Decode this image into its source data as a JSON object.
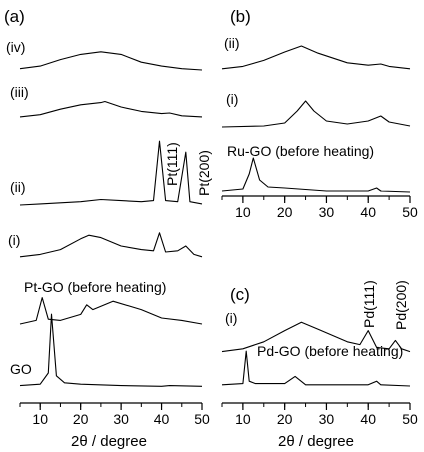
{
  "chart_data": [
    {
      "panel": "(a)",
      "type": "line",
      "xlabel": "2θ / degree",
      "xlim": [
        5,
        50
      ],
      "xticks": [
        10,
        20,
        30,
        40,
        50
      ],
      "ticks_label": [
        "10",
        "20",
        "30",
        "40",
        "50"
      ],
      "series": [
        {
          "name": "(iv)",
          "x": [
            5,
            10,
            15,
            20,
            25,
            30,
            35,
            40,
            45,
            50
          ],
          "values": [
            0.1,
            0.3,
            0.8,
            1.2,
            1.4,
            1.2,
            0.6,
            0.3,
            0.1,
            0.0
          ]
        },
        {
          "name": "(iii)",
          "x": [
            5,
            10,
            15,
            20,
            25,
            26,
            30,
            35,
            40,
            42,
            45,
            50
          ],
          "values": [
            0.1,
            0.3,
            0.8,
            1.2,
            1.4,
            1.5,
            1.0,
            0.6,
            0.4,
            0.45,
            0.2,
            0.1
          ]
        },
        {
          "name": "(ii)",
          "x": [
            5,
            10,
            15,
            20,
            25,
            30,
            35,
            38,
            39.5,
            41,
            44,
            46,
            47,
            50
          ],
          "values": [
            0.0,
            0.1,
            0.2,
            0.3,
            0.5,
            0.4,
            0.3,
            0.4,
            5.8,
            0.4,
            0.3,
            4.8,
            0.3,
            0.1
          ]
        },
        {
          "name": "(i)",
          "x": [
            5,
            10,
            15,
            20,
            22,
            25,
            30,
            35,
            38,
            39.5,
            41,
            44,
            46,
            48,
            50
          ],
          "values": [
            0.1,
            0.3,
            0.7,
            1.6,
            1.9,
            1.7,
            1.0,
            0.7,
            0.6,
            2.1,
            0.5,
            0.6,
            1.0,
            0.3,
            0.1
          ]
        },
        {
          "name": "Pt-GO (before heating)",
          "x": [
            5,
            9,
            10.5,
            12,
            15,
            20,
            21.5,
            23,
            28,
            35,
            40,
            45,
            50
          ],
          "values": [
            0.0,
            0.3,
            2.2,
            0.4,
            0.3,
            0.8,
            1.6,
            1.2,
            1.9,
            1.2,
            0.5,
            0.3,
            0.0
          ]
        },
        {
          "name": "GO",
          "x": [
            5,
            10,
            12,
            12.8,
            14,
            16,
            20,
            30,
            40,
            42,
            50
          ],
          "values": [
            0.1,
            0.2,
            1.0,
            5.2,
            0.8,
            0.3,
            0.2,
            0.1,
            0.05,
            0.1,
            0.05
          ]
        }
      ],
      "annotations": [
        "Pt(111)",
        "Pt(200)"
      ]
    },
    {
      "panel": "(b)",
      "type": "line",
      "xlabel": "",
      "xlim": [
        5,
        50
      ],
      "xticks": [
        10,
        20,
        30,
        40,
        50
      ],
      "ticks_label": [
        "10",
        "20",
        "30",
        "40",
        "50"
      ],
      "series": [
        {
          "name": "(ii)",
          "x": [
            5,
            10,
            15,
            20,
            24,
            28,
            35,
            40,
            43,
            45,
            50
          ],
          "values": [
            0.1,
            0.3,
            0.8,
            1.5,
            2.0,
            1.4,
            0.6,
            0.4,
            0.5,
            0.3,
            0.1
          ]
        },
        {
          "name": "(i)",
          "x": [
            5,
            15,
            20,
            23,
            25,
            27,
            30,
            35,
            40,
            43,
            45,
            50
          ],
          "values": [
            0.0,
            0.1,
            0.4,
            1.6,
            2.6,
            1.6,
            0.6,
            0.3,
            0.6,
            1.1,
            0.5,
            0.1
          ]
        },
        {
          "name": "Ru-GO (before heating)",
          "x": [
            5,
            10,
            11.5,
            12.5,
            14,
            16,
            20,
            30,
            40,
            42,
            43,
            50
          ],
          "values": [
            0.1,
            0.3,
            1.8,
            3.4,
            1.2,
            0.5,
            0.4,
            0.1,
            0.1,
            0.4,
            0.1,
            0.0
          ]
        }
      ]
    },
    {
      "panel": "(c)",
      "type": "line",
      "xlabel": "2θ / degree",
      "xlim": [
        5,
        50
      ],
      "xticks": [
        10,
        20,
        30,
        40,
        50
      ],
      "ticks_label": [
        "10",
        "20",
        "30",
        "40",
        "50"
      ],
      "series": [
        {
          "name": "(i)",
          "x": [
            5,
            10,
            15,
            20,
            24,
            28,
            35,
            38,
            40,
            42,
            45,
            46.5,
            48,
            50
          ],
          "values": [
            0.1,
            0.3,
            0.8,
            1.6,
            2.2,
            1.7,
            0.8,
            0.6,
            1.6,
            0.4,
            0.3,
            0.9,
            0.3,
            0.1
          ]
        },
        {
          "name": "Pd-GO (before heating)",
          "x": [
            5,
            10,
            10.8,
            11.5,
            13,
            20,
            22.5,
            25,
            30,
            40,
            42,
            43,
            50
          ],
          "values": [
            0.1,
            0.2,
            2.9,
            0.4,
            0.2,
            0.2,
            0.8,
            0.1,
            0.1,
            0.1,
            0.4,
            0.1,
            0.0
          ]
        }
      ],
      "annotations": [
        "Pd(111)",
        "Pd(200)"
      ]
    }
  ]
}
